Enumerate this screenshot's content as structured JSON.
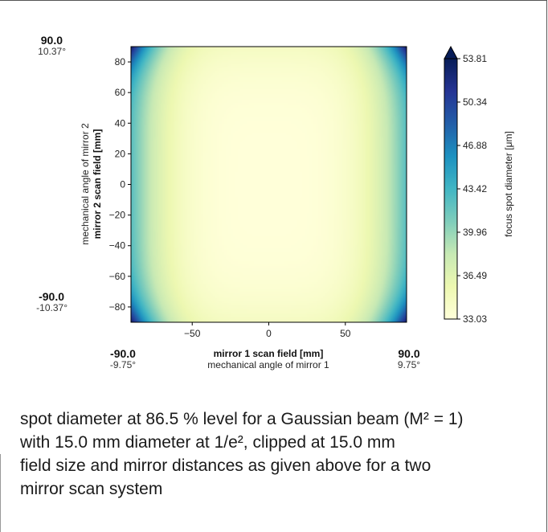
{
  "chart_data": {
    "type": "heatmap",
    "xlabel": "mirror 1 scan field [mm]",
    "xlabel_secondary": "mechanical angle of mirror 1",
    "ylabel": "mirror 2 scan field [mm]",
    "ylabel_secondary": "mechanical angle of mirror 2",
    "xlim": [
      -90,
      90
    ],
    "ylim": [
      -90,
      90
    ],
    "xticks": [
      -50,
      0,
      50
    ],
    "yticks": [
      -80,
      -60,
      -40,
      -20,
      0,
      20,
      40,
      60,
      80
    ],
    "colorbar": {
      "label": "focus spot diameter [μm]",
      "min": 33.03,
      "max": 53.81,
      "ticks": [
        "53.81",
        "50.34",
        "46.88",
        "43.42",
        "39.96",
        "36.49",
        "33.03"
      ],
      "extend": "max",
      "colormap": [
        "#ffffd9",
        "#edf8b1",
        "#c7e9b4",
        "#7fcdbb",
        "#41b6c4",
        "#1d91c0",
        "#225ea8",
        "#253494",
        "#081d58"
      ]
    },
    "corner_labels": {
      "top_left": {
        "value": "90.0",
        "angle": "10.37°"
      },
      "bottom_left": {
        "value": "-90.0",
        "angle": "-10.37°"
      },
      "bottom_x_left": {
        "value": "-90.0",
        "angle": "-9.75°"
      },
      "bottom_x_right": {
        "value": "90.0",
        "angle": "9.75°"
      }
    },
    "field_values_um": {
      "center": 33.03,
      "x_edge_mid": 42.5,
      "y_edge_mid": 34.5,
      "corners": 53.81
    }
  },
  "caption": [
    "spot diameter at 86.5 % level for a Gaussian beam (M² = 1)",
    "with 15.0 mm diameter at 1/e², clipped at 15.0 mm",
    "field size and mirror distances as given above for a two",
    "mirror scan system"
  ]
}
